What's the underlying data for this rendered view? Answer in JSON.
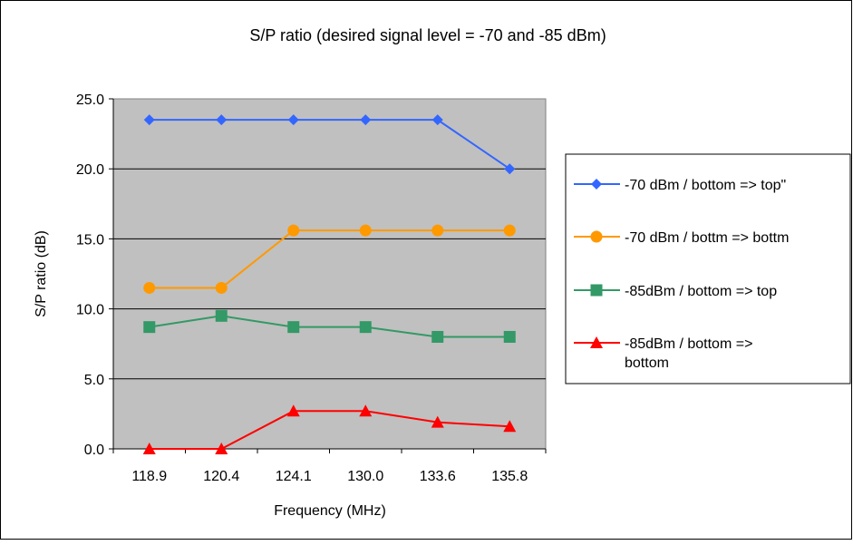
{
  "chart_data": {
    "type": "line",
    "title": "S/P ratio (desired signal level = -70 and -85 dBm)",
    "xlabel": "Frequency (MHz)",
    "ylabel": "S/P ratio (dB)",
    "categories": [
      "118.9",
      "120.4",
      "124.1",
      "130.0",
      "133.6",
      "135.8"
    ],
    "ylim": [
      0,
      25
    ],
    "yticks": [
      "0.0",
      "5.0",
      "10.0",
      "15.0",
      "20.0",
      "25.0"
    ],
    "grid": true,
    "legend_position": "right",
    "plot_background": "#c0c0c0",
    "series": [
      {
        "name": "-70 dBm / bottom => top\"",
        "marker": "diamond",
        "color": "#3366ff",
        "values": [
          23.5,
          23.5,
          23.5,
          23.5,
          23.5,
          20.0
        ]
      },
      {
        "name": "-70 dBm / bottm => bottm",
        "marker": "circle",
        "color": "#ff9900",
        "values": [
          11.5,
          11.5,
          15.6,
          15.6,
          15.6,
          15.6
        ]
      },
      {
        "name": "-85dBm / bottom => top",
        "marker": "square",
        "color": "#339966",
        "values": [
          8.7,
          9.5,
          8.7,
          8.7,
          8.0,
          8.0
        ]
      },
      {
        "name": "-85dBm / bottom =>\nbottom",
        "marker": "triangle",
        "color": "#ff0000",
        "values": [
          0.0,
          0.0,
          2.7,
          2.7,
          1.9,
          1.6
        ]
      }
    ]
  }
}
